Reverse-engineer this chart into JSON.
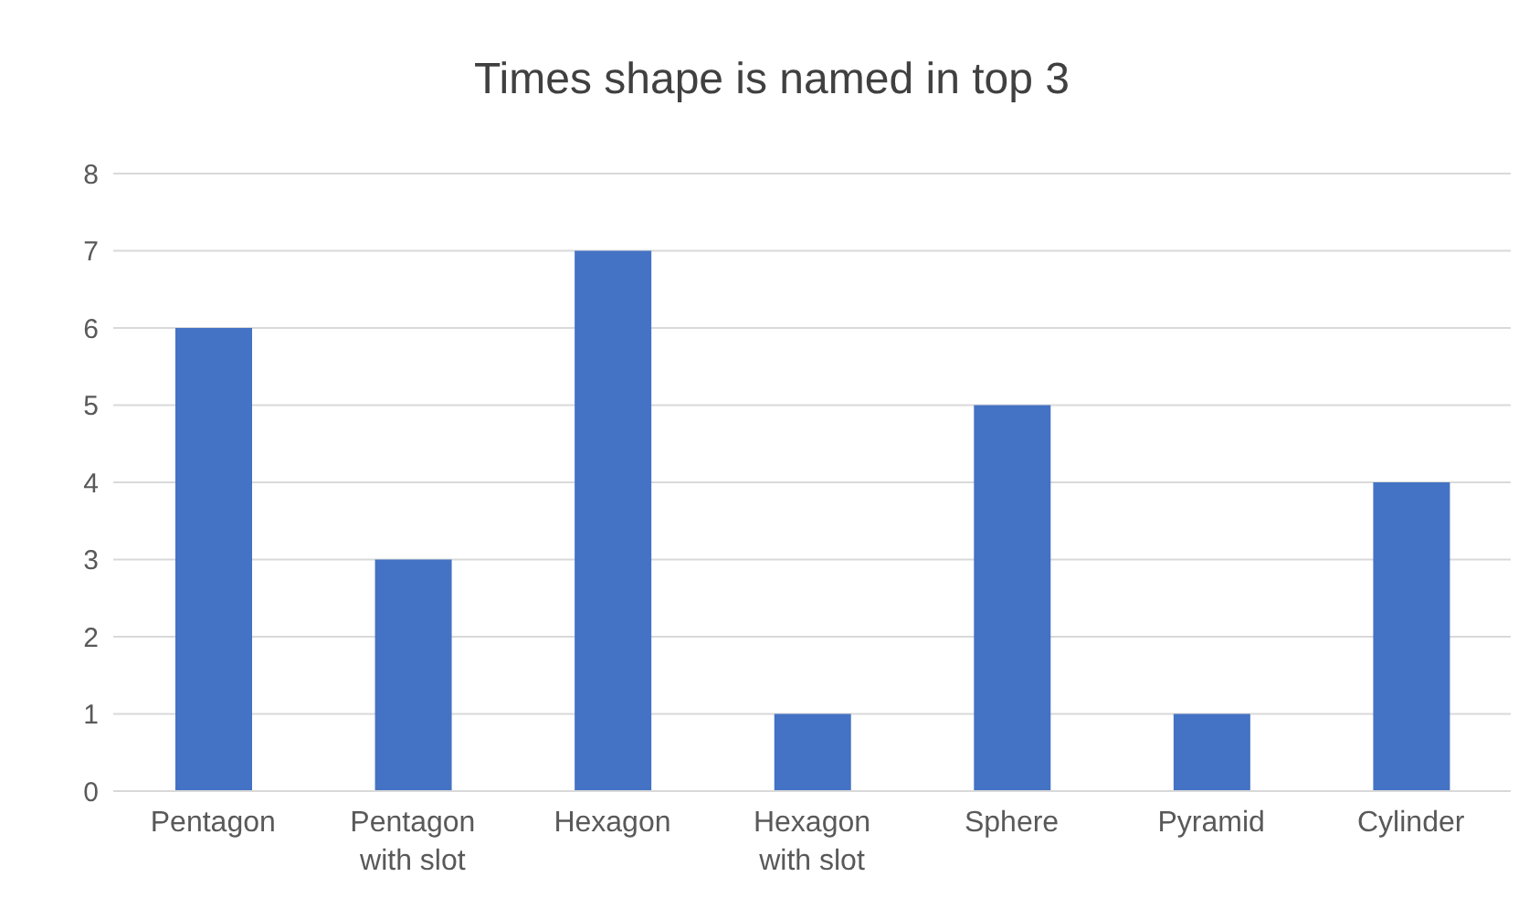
{
  "chart_data": {
    "type": "bar",
    "title": "Times shape is named in top 3",
    "categories": [
      "Pentagon",
      "Pentagon with slot",
      "Hexagon",
      "Hexagon with slot",
      "Sphere",
      "Pyramid",
      "Cylinder"
    ],
    "values": [
      6,
      3,
      7,
      1,
      5,
      1,
      4
    ],
    "color": "#4472c4",
    "ylim": [
      0,
      8
    ],
    "yticks": [
      0,
      1,
      2,
      3,
      4,
      5,
      6,
      7,
      8
    ],
    "grid": "y"
  }
}
